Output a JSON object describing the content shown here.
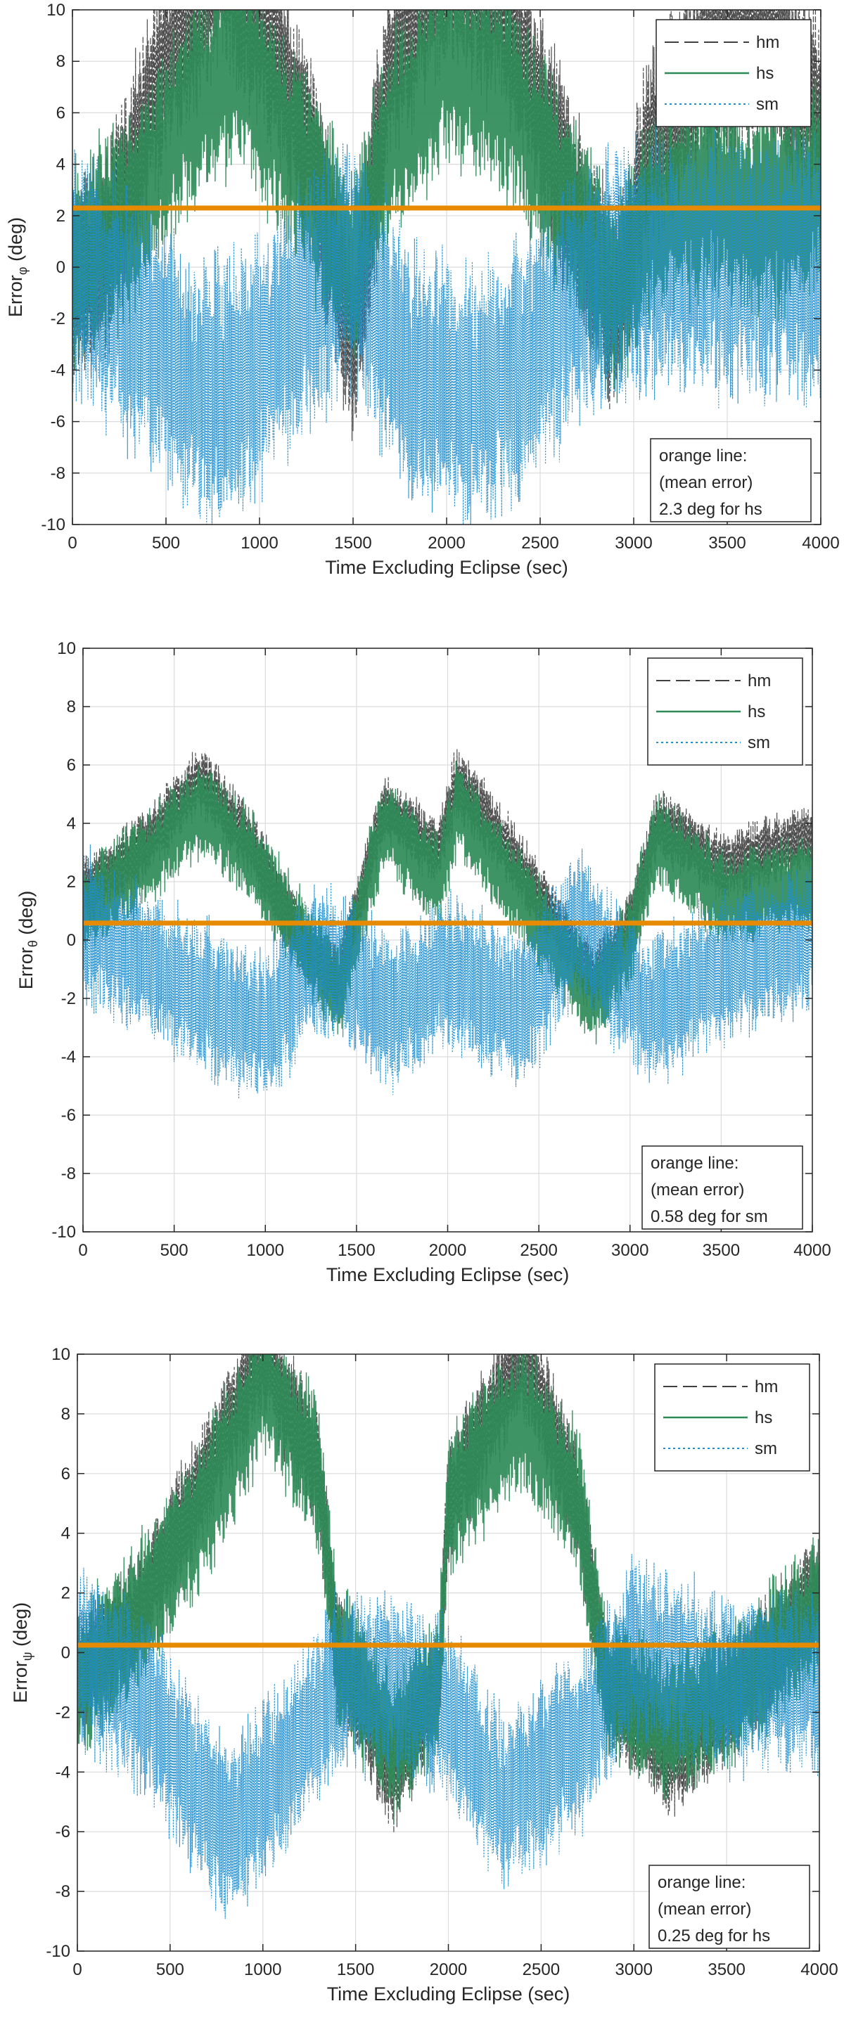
{
  "chart_data": [
    {
      "type": "line",
      "title": "",
      "xlabel": "Time Excluding Eclipse (sec)",
      "ylabel": {
        "base": "Error",
        "sub": "φ",
        "unit": " (deg)"
      },
      "xlim": [
        0,
        4000
      ],
      "ylim": [
        -10,
        10
      ],
      "xticks": [
        0,
        500,
        1000,
        1500,
        2000,
        2500,
        3000,
        3500,
        4000
      ],
      "yticks": [
        -10,
        -8,
        -6,
        -4,
        -2,
        0,
        2,
        4,
        6,
        8,
        10
      ],
      "grid": true,
      "legend_position": "top-right",
      "colors": {
        "hm": "#404040",
        "hs": "#2e8b57",
        "sm": "#1f8fcf",
        "mean": "#e68a00"
      },
      "series": [
        {
          "name": "hm",
          "style": "dashed",
          "center": [
            [
              0,
              -1
            ],
            [
              200,
              1
            ],
            [
              500,
              8
            ],
            [
              800,
              12
            ],
            [
              1100,
              8
            ],
            [
              1300,
              4
            ],
            [
              1500,
              -3
            ],
            [
              1700,
              8
            ],
            [
              2000,
              12
            ],
            [
              2300,
              10
            ],
            [
              2600,
              4
            ],
            [
              2900,
              -2
            ],
            [
              3100,
              5
            ],
            [
              3400,
              8
            ],
            [
              3700,
              9
            ],
            [
              4000,
              6
            ]
          ],
          "amplitude": [
            [
              0,
              4
            ],
            [
              4000,
              4
            ]
          ]
        },
        {
          "name": "hs",
          "style": "solid",
          "center": [
            [
              0,
              0
            ],
            [
              300,
              2
            ],
            [
              600,
              6
            ],
            [
              900,
              8
            ],
            [
              1200,
              4
            ],
            [
              1500,
              0
            ],
            [
              1700,
              5
            ],
            [
              2000,
              8
            ],
            [
              2300,
              7
            ],
            [
              2600,
              3
            ],
            [
              2900,
              -1
            ],
            [
              3100,
              2
            ],
            [
              3400,
              3
            ],
            [
              3700,
              2
            ],
            [
              4000,
              3
            ]
          ],
          "amplitude": [
            [
              0,
              4
            ],
            [
              4000,
              4
            ]
          ]
        },
        {
          "name": "sm",
          "style": "dotted",
          "center": [
            [
              0,
              0
            ],
            [
              300,
              -2
            ],
            [
              700,
              -5
            ],
            [
              1000,
              -4
            ],
            [
              1300,
              -1
            ],
            [
              1500,
              0
            ],
            [
              1800,
              -4
            ],
            [
              2100,
              -5
            ],
            [
              2400,
              -4
            ],
            [
              2700,
              -1
            ],
            [
              3000,
              0
            ],
            [
              3500,
              0
            ],
            [
              4000,
              0
            ]
          ],
          "amplitude": [
            [
              0,
              5
            ],
            [
              4000,
              5
            ]
          ]
        }
      ],
      "mean_line": {
        "series": "hs",
        "value": 2.3
      },
      "annotation": {
        "lines": [
          "orange line:",
          "(mean error)",
          "2.3 deg for hs"
        ],
        "position": "bottom-right"
      }
    },
    {
      "type": "line",
      "title": "",
      "xlabel": "Time Excluding Eclipse (sec)",
      "ylabel": {
        "base": "Error",
        "sub": "θ",
        "unit": " (deg)"
      },
      "xlim": [
        0,
        4000
      ],
      "ylim": [
        -10,
        10
      ],
      "xticks": [
        0,
        500,
        1000,
        1500,
        2000,
        2500,
        3000,
        3500,
        4000
      ],
      "yticks": [
        -10,
        -8,
        -6,
        -4,
        -2,
        0,
        2,
        4,
        6,
        8,
        10
      ],
      "grid": true,
      "legend_position": "top-right",
      "colors": {
        "hm": "#404040",
        "hs": "#2e8b57",
        "sm": "#1f8fcf",
        "mean": "#e68a00"
      },
      "series": [
        {
          "name": "hm",
          "style": "dashed",
          "center": [
            [
              0,
              1.5
            ],
            [
              300,
              3
            ],
            [
              650,
              5.5
            ],
            [
              900,
              3.5
            ],
            [
              1200,
              0
            ],
            [
              1400,
              -1.5
            ],
            [
              1650,
              4.5
            ],
            [
              1950,
              3
            ],
            [
              2050,
              5.5
            ],
            [
              2400,
              2.5
            ],
            [
              2800,
              -1.5
            ],
            [
              3000,
              0.5
            ],
            [
              3150,
              4
            ],
            [
              3500,
              2.5
            ],
            [
              4000,
              3.5
            ]
          ],
          "amplitude": [
            [
              0,
              1.2
            ],
            [
              4000,
              1.2
            ]
          ]
        },
        {
          "name": "hs",
          "style": "solid",
          "center": [
            [
              0,
              1
            ],
            [
              300,
              2.5
            ],
            [
              650,
              4.5
            ],
            [
              900,
              3
            ],
            [
              1200,
              0
            ],
            [
              1400,
              -1.8
            ],
            [
              1650,
              4
            ],
            [
              1950,
              2
            ],
            [
              2050,
              4.5
            ],
            [
              2400,
              1.5
            ],
            [
              2800,
              -2
            ],
            [
              3000,
              0
            ],
            [
              3150,
              3.5
            ],
            [
              3500,
              1.5
            ],
            [
              4000,
              2
            ]
          ],
          "amplitude": [
            [
              0,
              1.6
            ],
            [
              4000,
              1.6
            ]
          ]
        },
        {
          "name": "sm",
          "style": "dotted",
          "center": [
            [
              0,
              0.5
            ],
            [
              400,
              -1
            ],
            [
              800,
              -2.5
            ],
            [
              1000,
              -3
            ],
            [
              1300,
              -0.5
            ],
            [
              1700,
              -2.5
            ],
            [
              2000,
              -1
            ],
            [
              2400,
              -2.5
            ],
            [
              2700,
              0.5
            ],
            [
              3100,
              -2.5
            ],
            [
              3500,
              -1
            ],
            [
              4000,
              0
            ]
          ],
          "amplitude": [
            [
              0,
              2.6
            ],
            [
              4000,
              2.6
            ]
          ]
        }
      ],
      "mean_line": {
        "series": "sm",
        "value": 0.58
      },
      "annotation": {
        "lines": [
          "orange line:",
          "(mean error)",
          "0.58 deg for sm"
        ],
        "position": "bottom-right"
      }
    },
    {
      "type": "line",
      "title": "",
      "xlabel": "Time Excluding Eclipse (sec)",
      "ylabel": {
        "base": "Error",
        "sub": "ψ",
        "unit": " (deg)"
      },
      "xlim": [
        0,
        4000
      ],
      "ylim": [
        -10,
        10
      ],
      "xticks": [
        0,
        500,
        1000,
        1500,
        2000,
        2500,
        3000,
        3500,
        4000
      ],
      "yticks": [
        -10,
        -8,
        -6,
        -4,
        -2,
        0,
        2,
        4,
        6,
        8,
        10
      ],
      "grid": true,
      "legend_position": "top-right",
      "colors": {
        "hm": "#404040",
        "hs": "#2e8b57",
        "sm": "#1f8fcf",
        "mean": "#e68a00"
      },
      "series": [
        {
          "name": "hm",
          "style": "dashed",
          "center": [
            [
              0,
              -1
            ],
            [
              300,
              1
            ],
            [
              700,
              6
            ],
            [
              1000,
              10
            ],
            [
              1300,
              6
            ],
            [
              1400,
              0
            ],
            [
              1700,
              -4
            ],
            [
              1950,
              -1
            ],
            [
              2000,
              5
            ],
            [
              2400,
              10
            ],
            [
              2700,
              5
            ],
            [
              2850,
              -1
            ],
            [
              3200,
              -3.5
            ],
            [
              3600,
              -1
            ],
            [
              4000,
              2
            ]
          ],
          "amplitude": [
            [
              0,
              2
            ],
            [
              4000,
              2
            ]
          ]
        },
        {
          "name": "hs",
          "style": "solid",
          "center": [
            [
              0,
              -1
            ],
            [
              300,
              1
            ],
            [
              700,
              5
            ],
            [
              1000,
              9
            ],
            [
              1300,
              6
            ],
            [
              1400,
              0
            ],
            [
              1700,
              -3
            ],
            [
              1950,
              -1
            ],
            [
              2000,
              5
            ],
            [
              2400,
              8
            ],
            [
              2700,
              5
            ],
            [
              2850,
              -1
            ],
            [
              3200,
              -2.5
            ],
            [
              3600,
              -1
            ],
            [
              4000,
              1.5
            ]
          ],
          "amplitude": [
            [
              0,
              2.5
            ],
            [
              4000,
              2.5
            ]
          ]
        },
        {
          "name": "sm",
          "style": "dotted",
          "center": [
            [
              0,
              0
            ],
            [
              400,
              -2
            ],
            [
              800,
              -6
            ],
            [
              1100,
              -4
            ],
            [
              1400,
              -1
            ],
            [
              1700,
              -1
            ],
            [
              2000,
              -2
            ],
            [
              2300,
              -5
            ],
            [
              2700,
              -3
            ],
            [
              3000,
              0
            ],
            [
              3500,
              -1
            ],
            [
              4000,
              -1
            ]
          ],
          "amplitude": [
            [
              0,
              3
            ],
            [
              4000,
              3
            ]
          ]
        }
      ],
      "mean_line": {
        "series": "hs",
        "value": 0.25
      },
      "annotation": {
        "lines": [
          "orange line:",
          "(mean error)",
          "0.25 deg for hs"
        ],
        "position": "bottom-right"
      }
    }
  ]
}
